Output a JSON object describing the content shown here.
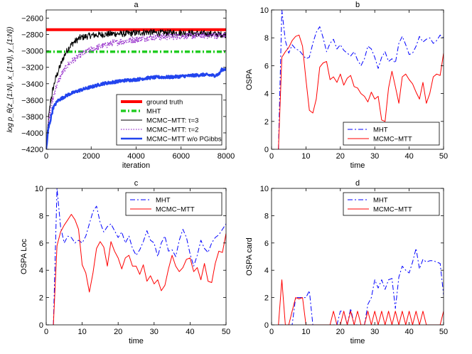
{
  "figure": {
    "description_panels": [
      "a",
      "b",
      "c",
      "d"
    ]
  },
  "colors": {
    "red": "#ff0000",
    "green": "#22cc22",
    "black": "#000000",
    "purple": "#9933cc",
    "blue": "#2244ee",
    "mht": "#0000ff"
  },
  "chart_data": [
    {
      "id": "a",
      "type": "line",
      "title": "a",
      "xlabel": "iteration",
      "ylabel": "log p_θ(z_{1:N}, x_{1:N}, y_{1:N})",
      "xlim": [
        0,
        8000
      ],
      "ylim": [
        -4200,
        -2500
      ],
      "xticks": [
        0,
        2000,
        4000,
        6000,
        8000
      ],
      "yticks": [
        -4200,
        -4000,
        -3800,
        -3600,
        -3400,
        -3200,
        -3000,
        -2800,
        -2600
      ],
      "legend": "lower-right",
      "series": [
        {
          "name": "ground truth",
          "color": "#ff0000",
          "style": "solid",
          "width": 4,
          "x": [
            0,
            8000
          ],
          "y": [
            -2740,
            -2740
          ]
        },
        {
          "name": "MHT",
          "color": "#22cc22",
          "style": "dashdot",
          "width": 3.5,
          "x": [
            0,
            8000
          ],
          "y": [
            -3010,
            -3010
          ]
        },
        {
          "name": "MCMC−MTT: τ=3",
          "color": "#000000",
          "style": "solid",
          "width": 1,
          "noise": 40,
          "x": [
            0,
            100,
            200,
            400,
            600,
            800,
            1000,
            1200,
            1500,
            2000,
            2500,
            3000,
            3500,
            4000,
            4500,
            5000,
            6000,
            7000,
            8000
          ],
          "y": [
            -4200,
            -3850,
            -3600,
            -3350,
            -3200,
            -3060,
            -2960,
            -2900,
            -2840,
            -2810,
            -2800,
            -2790,
            -2790,
            -2780,
            -2770,
            -2780,
            -2780,
            -2790,
            -2800
          ]
        },
        {
          "name": "MCMC−MTT: τ=2",
          "color": "#9933cc",
          "style": "dotted",
          "width": 1.3,
          "noise": 40,
          "x": [
            0,
            100,
            200,
            400,
            600,
            800,
            1000,
            1500,
            2000,
            2500,
            3000,
            3500,
            4000,
            4500,
            5000,
            6000,
            7000,
            8000
          ],
          "y": [
            -4200,
            -3900,
            -3700,
            -3470,
            -3330,
            -3230,
            -3160,
            -3050,
            -2980,
            -2940,
            -2900,
            -2880,
            -2860,
            -2840,
            -2830,
            -2820,
            -2810,
            -2810
          ]
        },
        {
          "name": "MCMC−MTT w/o PGibbs",
          "color": "#2244ee",
          "style": "solid",
          "width": 2.5,
          "noise": 18,
          "x": [
            0,
            100,
            300,
            500,
            800,
            1000,
            1500,
            2000,
            2500,
            3000,
            3500,
            4000,
            4500,
            5000,
            5500,
            6000,
            6500,
            7000,
            7500,
            7700,
            7800,
            8000
          ],
          "y": [
            -4200,
            -3950,
            -3700,
            -3610,
            -3560,
            -3530,
            -3480,
            -3440,
            -3400,
            -3380,
            -3360,
            -3350,
            -3330,
            -3320,
            -3320,
            -3310,
            -3300,
            -3290,
            -3300,
            -3280,
            -3230,
            -3220
          ]
        }
      ]
    },
    {
      "id": "b",
      "type": "line",
      "title": "b",
      "xlabel": "time",
      "ylabel": "OSPA",
      "xlim": [
        0,
        50
      ],
      "ylim": [
        0,
        10
      ],
      "xticks": [
        0,
        10,
        20,
        30,
        40,
        50
      ],
      "yticks": [
        0,
        2,
        4,
        6,
        8,
        10
      ],
      "legend": "lower-right",
      "series": [
        {
          "name": "MHT",
          "color": "#0000ff",
          "style": "dashdot",
          "width": 1,
          "x": [
            2,
            3,
            4,
            5,
            6,
            7,
            8,
            9,
            10,
            11,
            12,
            13,
            14,
            15,
            16,
            17,
            18,
            19,
            20,
            21,
            22,
            23,
            24,
            25,
            26,
            27,
            28,
            29,
            30,
            31,
            32,
            33,
            34,
            35,
            36,
            37,
            38,
            39,
            40,
            41,
            42,
            43,
            44,
            45,
            46,
            47,
            48,
            49,
            50
          ],
          "y": [
            0,
            10,
            7.8,
            6.9,
            7.5,
            7.2,
            7.1,
            6.8,
            6.5,
            6.6,
            7.6,
            8.4,
            8.8,
            8.0,
            7.0,
            7.6,
            7.9,
            7.2,
            7.5,
            7.1,
            6.9,
            6.7,
            7.0,
            6.4,
            6.0,
            6.5,
            7.4,
            7.2,
            6.6,
            5.8,
            6.6,
            7.0,
            6.3,
            6.5,
            6.2,
            7.6,
            8.1,
            7.5,
            6.8,
            6.9,
            7.4,
            8.1,
            7.7,
            7.9,
            8.0,
            7.6,
            7.8,
            8.2,
            8.0
          ]
        },
        {
          "name": "MCMC−MTT",
          "color": "#ff0000",
          "style": "solid",
          "width": 1,
          "x": [
            2,
            3,
            4,
            5,
            6,
            7,
            8,
            9,
            10,
            11,
            12,
            13,
            14,
            15,
            16,
            17,
            18,
            19,
            20,
            21,
            22,
            23,
            24,
            25,
            26,
            27,
            28,
            29,
            30,
            31,
            32,
            33,
            34,
            35,
            36,
            37,
            38,
            39,
            40,
            41,
            42,
            43,
            44,
            45,
            46,
            47,
            48,
            49,
            50
          ],
          "y": [
            0,
            6.6,
            7.0,
            7.3,
            7.8,
            8.1,
            8.2,
            7.4,
            5.0,
            2.8,
            2.6,
            3.6,
            5.9,
            6.2,
            6.3,
            5.0,
            5.2,
            4.8,
            5.4,
            4.6,
            5.1,
            5.3,
            4.5,
            4.4,
            4.0,
            3.8,
            3.4,
            4.1,
            3.6,
            3.8,
            2.1,
            2.0,
            4.4,
            5.6,
            4.5,
            3.3,
            5.2,
            5.4,
            5.0,
            4.7,
            4.1,
            3.6,
            4.8,
            3.3,
            4.0,
            5.2,
            5.4,
            5.3,
            6.9
          ]
        }
      ]
    },
    {
      "id": "c",
      "type": "line",
      "title": "c",
      "xlabel": "time",
      "ylabel": "OSPA Loc",
      "xlim": [
        0,
        50
      ],
      "ylim": [
        0,
        10
      ],
      "xticks": [
        0,
        10,
        20,
        30,
        40,
        50
      ],
      "yticks": [
        0,
        2,
        4,
        6,
        8,
        10
      ],
      "legend": "top-right",
      "series": [
        {
          "name": "MHT",
          "color": "#0000ff",
          "style": "dashdot",
          "width": 1,
          "x": [
            2,
            3,
            4,
            5,
            6,
            7,
            8,
            9,
            10,
            11,
            12,
            13,
            14,
            15,
            16,
            17,
            18,
            19,
            20,
            21,
            22,
            23,
            24,
            25,
            26,
            27,
            28,
            29,
            30,
            31,
            32,
            33,
            34,
            35,
            36,
            37,
            38,
            39,
            40,
            41,
            42,
            43,
            44,
            45,
            46,
            47,
            48,
            49,
            50
          ],
          "y": [
            0,
            10,
            7.2,
            6.0,
            6.5,
            6.4,
            6.0,
            6.2,
            6.0,
            6.5,
            7.4,
            8.3,
            8.7,
            7.5,
            6.8,
            7.2,
            7.4,
            6.9,
            6.4,
            6.8,
            6.0,
            6.5,
            5.6,
            5.1,
            5.5,
            6.1,
            6.9,
            6.2,
            6.0,
            5.0,
            6.0,
            6.5,
            5.4,
            5.5,
            5.0,
            6.2,
            7.0,
            6.4,
            5.2,
            4.3,
            5.1,
            6.2,
            5.6,
            5.3,
            6.0,
            6.4,
            6.6,
            7.0,
            7.4
          ]
        },
        {
          "name": "MCMC−MTT",
          "color": "#ff0000",
          "style": "solid",
          "width": 1,
          "x": [
            2,
            3,
            4,
            5,
            6,
            7,
            8,
            9,
            10,
            11,
            12,
            13,
            14,
            15,
            16,
            17,
            18,
            19,
            20,
            21,
            22,
            23,
            24,
            25,
            26,
            27,
            28,
            29,
            30,
            31,
            32,
            33,
            34,
            35,
            36,
            37,
            38,
            39,
            40,
            41,
            42,
            43,
            44,
            45,
            46,
            47,
            48,
            49,
            50
          ],
          "y": [
            0,
            5.8,
            6.8,
            7.3,
            7.7,
            8.1,
            7.7,
            7.0,
            4.4,
            3.8,
            2.4,
            3.8,
            5.6,
            6.1,
            5.7,
            4.3,
            6.1,
            5.4,
            4.9,
            4.1,
            4.9,
            5.1,
            4.3,
            4.3,
            3.7,
            4.4,
            3.2,
            3.6,
            3.0,
            3.3,
            2.5,
            2.9,
            4.1,
            5.1,
            4.3,
            3.9,
            4.2,
            4.8,
            4.9,
            3.9,
            4.2,
            3.3,
            4.5,
            3.2,
            3.1,
            4.5,
            5.4,
            5.3,
            6.7
          ]
        }
      ]
    },
    {
      "id": "d",
      "type": "line",
      "title": "d",
      "xlabel": "time",
      "ylabel": "OSPA card",
      "xlim": [
        0,
        50
      ],
      "ylim": [
        0,
        10
      ],
      "xticks": [
        0,
        10,
        20,
        30,
        40,
        50
      ],
      "yticks": [
        0,
        2,
        4,
        6,
        8,
        10
      ],
      "legend": "top-right",
      "series": [
        {
          "name": "MHT",
          "color": "#0000ff",
          "style": "dashdot",
          "width": 1,
          "x": [
            2,
            3,
            4,
            5,
            6,
            7,
            8,
            9,
            10,
            11,
            12,
            13,
            14,
            15,
            16,
            17,
            18,
            19,
            20,
            21,
            22,
            23,
            24,
            25,
            26,
            27,
            28,
            29,
            30,
            31,
            32,
            33,
            34,
            35,
            36,
            37,
            38,
            39,
            40,
            41,
            42,
            43,
            44,
            45,
            46,
            47,
            48,
            49,
            50
          ],
          "y": [
            0,
            0,
            0,
            0,
            0,
            2,
            2,
            2,
            2,
            2.5,
            0,
            0,
            0,
            0,
            0,
            0,
            0,
            0,
            1,
            1,
            0,
            1.2,
            0,
            0,
            0,
            0,
            1.5,
            2,
            3.3,
            2.7,
            3.3,
            2.6,
            3.3,
            3.4,
            1.2,
            3.5,
            4.3,
            4.0,
            3.8,
            4.6,
            5.6,
            4.1,
            4.8,
            4.6,
            4.7,
            4.7,
            4.6,
            4.5,
            2.2
          ]
        },
        {
          "name": "MCMC−MTT",
          "color": "#ff0000",
          "style": "solid",
          "width": 1,
          "x": [
            2,
            3,
            4,
            5,
            6,
            7,
            8,
            9,
            10,
            11,
            12,
            13,
            14,
            15,
            16,
            17,
            18,
            19,
            20,
            21,
            22,
            23,
            24,
            25,
            26,
            27,
            28,
            29,
            30,
            31,
            32,
            33,
            34,
            35,
            36,
            37,
            38,
            39,
            40,
            41,
            42,
            43,
            44,
            45,
            46,
            47,
            48,
            49,
            50
          ],
          "y": [
            0,
            3.3,
            0,
            0,
            1,
            2,
            1.9,
            2,
            0,
            0,
            0,
            0,
            0,
            0,
            0,
            0,
            1,
            0,
            0,
            1,
            0,
            1,
            0,
            1,
            0,
            0,
            1,
            0,
            1,
            0,
            1,
            0,
            1,
            0,
            1,
            0,
            1,
            0,
            1,
            0,
            1,
            0,
            1,
            0,
            0,
            0,
            0,
            0,
            1
          ]
        }
      ]
    }
  ]
}
